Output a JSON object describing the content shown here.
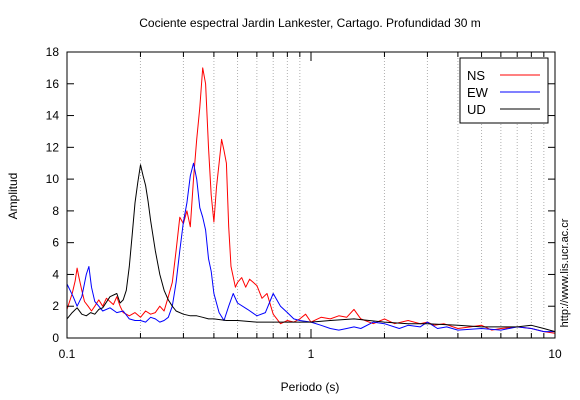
{
  "chart_data": {
    "type": "line",
    "title": "Cociente espectral Jardin Lankester, Cartago. Profundidad 30 m",
    "xlabel": "Periodo (s)",
    "ylabel": "Amplitud",
    "xscale": "log",
    "xlim": [
      0.1,
      10
    ],
    "ylim": [
      0,
      18
    ],
    "x_ticks": [
      {
        "value": 0.1,
        "label": "0.1"
      },
      {
        "value": 1,
        "label": "1"
      },
      {
        "value": 10,
        "label": "10"
      }
    ],
    "y_ticks": [
      0,
      2,
      4,
      6,
      8,
      10,
      12,
      14,
      16,
      18
    ],
    "grid": "vertical dotted at log minor ticks",
    "legend_position": "top-right",
    "side_annotation": "http://www.lis.ucr.ac.cr",
    "series": [
      {
        "name": "NS",
        "color": "#ff0000",
        "points": [
          [
            0.1,
            1.8
          ],
          [
            0.105,
            2.8
          ],
          [
            0.108,
            3.6
          ],
          [
            0.11,
            4.4
          ],
          [
            0.112,
            3.8
          ],
          [
            0.115,
            3.0
          ],
          [
            0.118,
            2.3
          ],
          [
            0.122,
            2.0
          ],
          [
            0.126,
            1.7
          ],
          [
            0.13,
            2.0
          ],
          [
            0.135,
            2.4
          ],
          [
            0.14,
            2.0
          ],
          [
            0.145,
            2.5
          ],
          [
            0.15,
            2.3
          ],
          [
            0.155,
            2.1
          ],
          [
            0.16,
            2.6
          ],
          [
            0.165,
            2.0
          ],
          [
            0.17,
            1.6
          ],
          [
            0.18,
            1.4
          ],
          [
            0.19,
            1.6
          ],
          [
            0.2,
            1.3
          ],
          [
            0.21,
            1.7
          ],
          [
            0.22,
            1.5
          ],
          [
            0.23,
            1.6
          ],
          [
            0.24,
            2.0
          ],
          [
            0.25,
            1.7
          ],
          [
            0.26,
            2.6
          ],
          [
            0.27,
            3.5
          ],
          [
            0.28,
            5.5
          ],
          [
            0.29,
            7.6
          ],
          [
            0.3,
            7.2
          ],
          [
            0.31,
            8.0
          ],
          [
            0.32,
            7.0
          ],
          [
            0.33,
            10.0
          ],
          [
            0.34,
            12.5
          ],
          [
            0.35,
            14.5
          ],
          [
            0.36,
            17.0
          ],
          [
            0.37,
            16.0
          ],
          [
            0.38,
            12.0
          ],
          [
            0.39,
            9.0
          ],
          [
            0.4,
            7.3
          ],
          [
            0.41,
            9.5
          ],
          [
            0.42,
            11.0
          ],
          [
            0.43,
            12.5
          ],
          [
            0.44,
            11.8
          ],
          [
            0.45,
            11.0
          ],
          [
            0.46,
            7.0
          ],
          [
            0.47,
            4.5
          ],
          [
            0.49,
            3.2
          ],
          [
            0.5,
            3.5
          ],
          [
            0.52,
            3.8
          ],
          [
            0.54,
            3.2
          ],
          [
            0.56,
            3.7
          ],
          [
            0.58,
            3.5
          ],
          [
            0.6,
            3.3
          ],
          [
            0.63,
            2.5
          ],
          [
            0.66,
            2.8
          ],
          [
            0.7,
            1.5
          ],
          [
            0.75,
            0.9
          ],
          [
            0.8,
            1.1
          ],
          [
            0.85,
            1.0
          ],
          [
            0.9,
            1.2
          ],
          [
            0.95,
            1.5
          ],
          [
            1.0,
            1.0
          ],
          [
            1.1,
            1.3
          ],
          [
            1.2,
            1.2
          ],
          [
            1.3,
            1.4
          ],
          [
            1.4,
            1.3
          ],
          [
            1.5,
            1.8
          ],
          [
            1.6,
            1.2
          ],
          [
            1.8,
            0.9
          ],
          [
            2.0,
            1.2
          ],
          [
            2.2,
            0.9
          ],
          [
            2.5,
            1.1
          ],
          [
            2.8,
            0.9
          ],
          [
            3.0,
            1.0
          ],
          [
            3.2,
            0.8
          ],
          [
            3.5,
            0.9
          ],
          [
            4.0,
            0.6
          ],
          [
            4.5,
            0.7
          ],
          [
            5.0,
            0.8
          ],
          [
            5.5,
            0.5
          ],
          [
            6.0,
            0.6
          ],
          [
            7.0,
            0.7
          ],
          [
            8.0,
            0.6
          ],
          [
            9.0,
            0.4
          ],
          [
            10.0,
            0.3
          ]
        ]
      },
      {
        "name": "EW",
        "color": "#0000ff",
        "points": [
          [
            0.1,
            3.4
          ],
          [
            0.103,
            3.0
          ],
          [
            0.106,
            2.6
          ],
          [
            0.11,
            2.0
          ],
          [
            0.115,
            2.6
          ],
          [
            0.12,
            4.0
          ],
          [
            0.123,
            4.5
          ],
          [
            0.126,
            3.2
          ],
          [
            0.13,
            2.3
          ],
          [
            0.135,
            2.0
          ],
          [
            0.14,
            1.7
          ],
          [
            0.15,
            1.9
          ],
          [
            0.16,
            1.6
          ],
          [
            0.17,
            1.7
          ],
          [
            0.18,
            1.2
          ],
          [
            0.19,
            1.1
          ],
          [
            0.2,
            1.1
          ],
          [
            0.21,
            1.0
          ],
          [
            0.22,
            1.3
          ],
          [
            0.23,
            1.2
          ],
          [
            0.24,
            1.0
          ],
          [
            0.25,
            1.1
          ],
          [
            0.26,
            1.3
          ],
          [
            0.27,
            2.0
          ],
          [
            0.28,
            3.5
          ],
          [
            0.29,
            5.5
          ],
          [
            0.3,
            7.3
          ],
          [
            0.31,
            8.5
          ],
          [
            0.32,
            10.2
          ],
          [
            0.33,
            11.0
          ],
          [
            0.34,
            10.0
          ],
          [
            0.35,
            8.2
          ],
          [
            0.36,
            7.6
          ],
          [
            0.37,
            6.8
          ],
          [
            0.38,
            5.0
          ],
          [
            0.39,
            4.2
          ],
          [
            0.4,
            2.8
          ],
          [
            0.42,
            1.6
          ],
          [
            0.44,
            1.1
          ],
          [
            0.46,
            2.0
          ],
          [
            0.48,
            2.8
          ],
          [
            0.5,
            2.2
          ],
          [
            0.55,
            1.8
          ],
          [
            0.6,
            1.4
          ],
          [
            0.65,
            1.6
          ],
          [
            0.7,
            2.8
          ],
          [
            0.75,
            2.0
          ],
          [
            0.8,
            1.6
          ],
          [
            0.85,
            1.2
          ],
          [
            0.9,
            1.1
          ],
          [
            1.0,
            1.0
          ],
          [
            1.1,
            0.8
          ],
          [
            1.2,
            0.6
          ],
          [
            1.3,
            0.5
          ],
          [
            1.4,
            0.6
          ],
          [
            1.5,
            0.7
          ],
          [
            1.6,
            0.6
          ],
          [
            1.8,
            1.0
          ],
          [
            2.0,
            0.9
          ],
          [
            2.3,
            0.6
          ],
          [
            2.5,
            0.8
          ],
          [
            2.8,
            0.7
          ],
          [
            3.0,
            1.0
          ],
          [
            3.3,
            0.6
          ],
          [
            3.6,
            0.7
          ],
          [
            4.0,
            0.5
          ],
          [
            5.0,
            0.6
          ],
          [
            6.0,
            0.5
          ],
          [
            7.0,
            0.7
          ],
          [
            8.0,
            0.6
          ],
          [
            9.0,
            0.4
          ],
          [
            10.0,
            0.4
          ]
        ]
      },
      {
        "name": "UD",
        "color": "#000000",
        "points": [
          [
            0.1,
            1.2
          ],
          [
            0.105,
            1.6
          ],
          [
            0.11,
            1.9
          ],
          [
            0.115,
            1.5
          ],
          [
            0.12,
            1.4
          ],
          [
            0.125,
            1.6
          ],
          [
            0.13,
            1.5
          ],
          [
            0.135,
            1.8
          ],
          [
            0.14,
            1.9
          ],
          [
            0.15,
            2.6
          ],
          [
            0.16,
            2.8
          ],
          [
            0.165,
            2.2
          ],
          [
            0.17,
            2.4
          ],
          [
            0.175,
            3.0
          ],
          [
            0.18,
            4.5
          ],
          [
            0.185,
            6.5
          ],
          [
            0.19,
            8.5
          ],
          [
            0.195,
            9.8
          ],
          [
            0.2,
            10.9
          ],
          [
            0.205,
            10.2
          ],
          [
            0.21,
            9.6
          ],
          [
            0.215,
            8.6
          ],
          [
            0.22,
            7.4
          ],
          [
            0.23,
            5.5
          ],
          [
            0.24,
            4.0
          ],
          [
            0.25,
            3.0
          ],
          [
            0.26,
            2.4
          ],
          [
            0.27,
            2.0
          ],
          [
            0.28,
            1.7
          ],
          [
            0.3,
            1.5
          ],
          [
            0.32,
            1.4
          ],
          [
            0.34,
            1.4
          ],
          [
            0.36,
            1.3
          ],
          [
            0.38,
            1.2
          ],
          [
            0.4,
            1.2
          ],
          [
            0.45,
            1.1
          ],
          [
            0.5,
            1.1
          ],
          [
            0.6,
            1.0
          ],
          [
            0.7,
            1.0
          ],
          [
            0.8,
            1.0
          ],
          [
            1.0,
            1.0
          ],
          [
            1.2,
            1.1
          ],
          [
            1.5,
            1.2
          ],
          [
            2.0,
            1.0
          ],
          [
            2.5,
            0.9
          ],
          [
            3.0,
            0.9
          ],
          [
            4.0,
            0.8
          ],
          [
            5.0,
            0.7
          ],
          [
            6.0,
            0.7
          ],
          [
            7.0,
            0.7
          ],
          [
            8.0,
            0.8
          ],
          [
            9.0,
            0.6
          ],
          [
            10.0,
            0.4
          ]
        ]
      }
    ]
  }
}
